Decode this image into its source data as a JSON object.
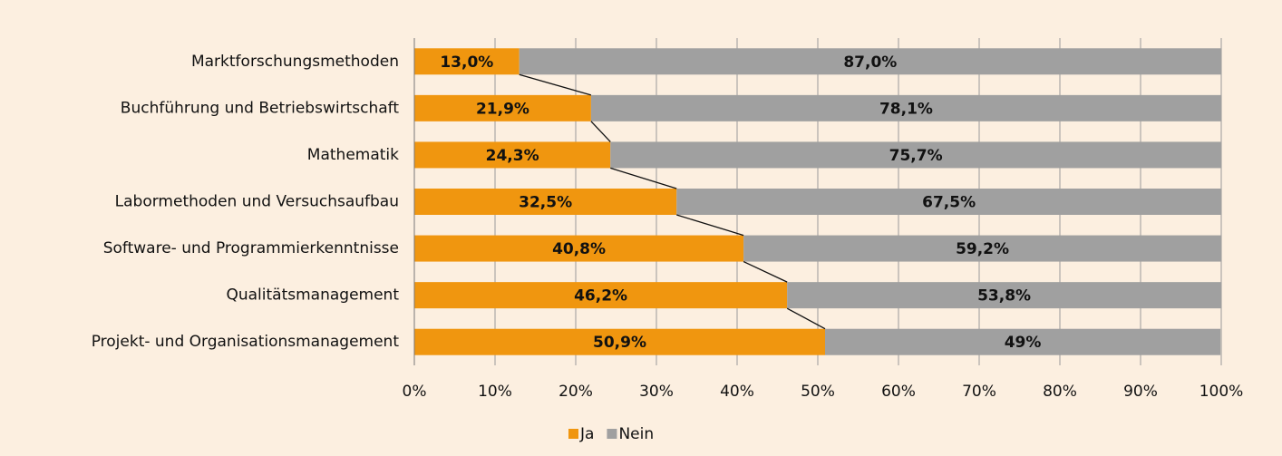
{
  "chart_data": {
    "type": "stacked_bar_horizontal",
    "categories": [
      "Marktforschungsmethoden",
      "Buchführung und Betriebswirtschaft",
      "Mathematik",
      "Labormethoden und Versuchsaufbau",
      "Software- und Programmierkenntnisse",
      "Qualitätsmanagement",
      "Projekt- und Organisationsmanagement"
    ],
    "series": [
      {
        "name": "Ja",
        "color": "#f0960f",
        "values": [
          13.0,
          21.9,
          24.3,
          32.5,
          40.8,
          46.2,
          50.9
        ],
        "value_labels": [
          "13,0%",
          "21,9%",
          "24,3%",
          "32,5%",
          "40,8%",
          "46,2%",
          "50,9%"
        ]
      },
      {
        "name": "Nein",
        "color": "#a0a0a0",
        "values": [
          87.0,
          78.1,
          75.7,
          67.5,
          59.2,
          53.8,
          49
        ],
        "value_labels": [
          "87,0%",
          "78,1%",
          "75,7%",
          "67,5%",
          "59,2%",
          "53,8%",
          "49%"
        ]
      }
    ],
    "xlim": [
      0,
      100
    ],
    "xticks": [
      {
        "value": 0,
        "label": "0%"
      },
      {
        "value": 10,
        "label": "10%"
      },
      {
        "value": 20,
        "label": "20%"
      },
      {
        "value": 30,
        "label": "30%"
      },
      {
        "value": 40,
        "label": "40%"
      },
      {
        "value": 50,
        "label": "50%"
      },
      {
        "value": 60,
        "label": "60%"
      },
      {
        "value": 70,
        "label": "70%"
      },
      {
        "value": 80,
        "label": "80%"
      },
      {
        "value": 90,
        "label": "90%"
      },
      {
        "value": 100,
        "label": "100%"
      }
    ],
    "grid": true,
    "legend": "bottom"
  }
}
